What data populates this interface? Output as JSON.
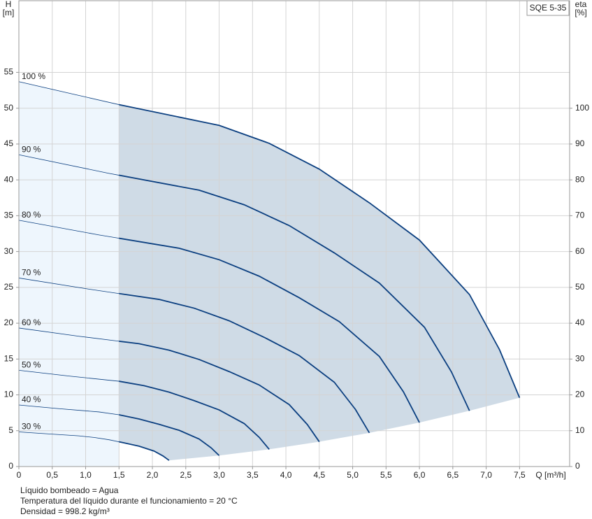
{
  "chart_data": {
    "type": "line",
    "title": "SQE 5-35",
    "x_label": "Q [m³/h]",
    "y_label": "H",
    "y_unit": "[m]",
    "y2_label": "eta",
    "y2_unit": "[%]",
    "xlim": [
      0,
      8.25
    ],
    "ylim": [
      0,
      65
    ],
    "y2lim": [
      0,
      130
    ],
    "xticks": [
      0,
      {
        "value": 0.5,
        "label": "0,5"
      },
      {
        "value": 1,
        "label": "1,0"
      },
      {
        "value": 1.5,
        "label": "1,5"
      },
      {
        "value": 2,
        "label": "2,0"
      },
      {
        "value": 2.5,
        "label": "2,5"
      },
      {
        "value": 3,
        "label": "3,0"
      },
      {
        "value": 3.5,
        "label": "3,5"
      },
      {
        "value": 4,
        "label": "4,0"
      },
      {
        "value": 4.5,
        "label": "4,5"
      },
      {
        "value": 5,
        "label": "5,0"
      },
      {
        "value": 5.5,
        "label": "5,5"
      },
      {
        "value": 6,
        "label": "6,0"
      },
      {
        "value": 6.5,
        "label": "6,5"
      },
      {
        "value": 7,
        "label": "7,0"
      },
      {
        "value": 7.5,
        "label": "7,5"
      }
    ],
    "yticks": [
      0,
      5,
      10,
      15,
      20,
      25,
      30,
      35,
      40,
      45,
      50,
      55
    ],
    "y2ticks": [
      0,
      10,
      20,
      30,
      40,
      50,
      60,
      70,
      80,
      90,
      100
    ],
    "grid": true,
    "min_flow": 1.5,
    "area_color": "#cfdbe6",
    "low_flow_color": "#eef6fd",
    "series": [
      {
        "name": "100 %",
        "color": "#0b3f80",
        "x": [
          0,
          1.5,
          3,
          3.75,
          4.5,
          5.25,
          6,
          6.75,
          7.2,
          7.5
        ],
        "values": [
          53.7,
          50.5,
          47.6,
          45.1,
          41.5,
          36.8,
          31.6,
          24.0,
          16.3,
          9.6
        ]
      },
      {
        "name": "90 %",
        "color": "#0b3f80",
        "x": [
          0,
          1.35,
          2.7,
          3.375,
          4.05,
          4.725,
          5.4,
          6.075,
          6.48,
          6.75
        ],
        "values": [
          43.5,
          40.91,
          38.56,
          36.53,
          33.62,
          29.81,
          25.6,
          19.44,
          13.2,
          7.78
        ]
      },
      {
        "name": "80 %",
        "color": "#0b3f80",
        "x": [
          0,
          1.2,
          2.4,
          3,
          3.6,
          4.2,
          4.8,
          5.4,
          5.76,
          6
        ],
        "values": [
          34.37,
          32.32,
          30.46,
          28.86,
          26.56,
          23.55,
          20.22,
          15.36,
          10.43,
          6.14
        ]
      },
      {
        "name": "70 %",
        "color": "#0b3f80",
        "x": [
          0,
          1.05,
          2.1,
          2.625,
          3.15,
          3.675,
          4.2,
          4.725,
          5.04,
          5.25
        ],
        "values": [
          26.31,
          24.75,
          23.32,
          22.1,
          20.34,
          18.03,
          15.48,
          11.76,
          7.99,
          4.7
        ]
      },
      {
        "name": "60 %",
        "color": "#0b3f80",
        "x": [
          0,
          0.9,
          1.8,
          2.25,
          2.7,
          3.15,
          3.6,
          4.05,
          4.32,
          4.5
        ],
        "values": [
          19.33,
          18.18,
          17.14,
          16.24,
          14.94,
          13.25,
          11.38,
          8.64,
          5.87,
          3.46
        ]
      },
      {
        "name": "50 %",
        "color": "#0b3f80",
        "x": [
          0,
          0.75,
          1.5,
          1.875,
          2.25,
          2.625,
          3,
          3.375,
          3.6,
          3.75
        ],
        "values": [
          13.43,
          12.63,
          11.9,
          11.28,
          10.38,
          9.2,
          7.9,
          6.0,
          4.08,
          2.4
        ]
      },
      {
        "name": "40 %",
        "color": "#0b3f80",
        "x": [
          0,
          0.6,
          1.2,
          1.5,
          1.8,
          2.1,
          2.4,
          2.7,
          2.88,
          3
        ],
        "values": [
          8.59,
          8.08,
          7.62,
          7.22,
          6.64,
          5.89,
          5.06,
          3.84,
          2.61,
          1.54
        ]
      },
      {
        "name": "30 %",
        "color": "#0b3f80",
        "x": [
          0,
          0.45,
          0.9,
          1.125,
          1.35,
          1.575,
          1.8,
          2.025,
          2.16,
          2.25
        ],
        "values": [
          4.83,
          4.55,
          4.28,
          4.06,
          3.74,
          3.31,
          2.84,
          2.16,
          1.47,
          0.86
        ]
      }
    ],
    "notes": [
      "Líquido bombeado = Agua",
      "Temperatura del líquido durante el funcionamiento = 20 °C",
      "Densidad = 998.2 kg/m³"
    ]
  }
}
